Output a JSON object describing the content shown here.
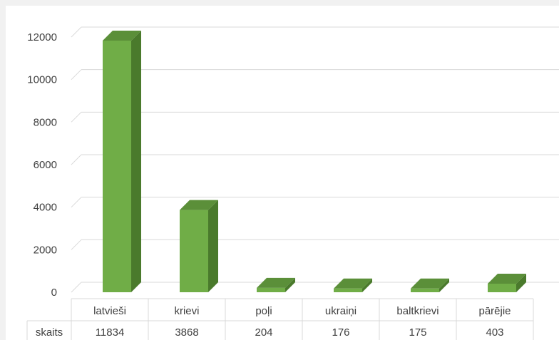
{
  "chart_data": {
    "type": "bar",
    "categories": [
      "latvieši",
      "krievi",
      "poļi",
      "ukraiņi",
      "baltkrievi",
      "pārējie"
    ],
    "series": [
      {
        "values": [
          11834,
          3868,
          204,
          176,
          175,
          403
        ]
      }
    ],
    "data_table": {
      "row_label": "skaits",
      "values": [
        "11834",
        "3868",
        "204",
        "176",
        "175",
        "403"
      ]
    },
    "y_ticks": [
      "0",
      "2000",
      "4000",
      "6000",
      "8000",
      "10000",
      "12000"
    ],
    "ylim": [
      0,
      12000
    ],
    "grid": true,
    "style": "3d-column",
    "colors": {
      "bar_front": "#70ad47",
      "bar_side": "#4a7a2c",
      "bar_top": "#5b8f39",
      "grid": "#d9d9d9",
      "background": "#ffffff"
    }
  }
}
